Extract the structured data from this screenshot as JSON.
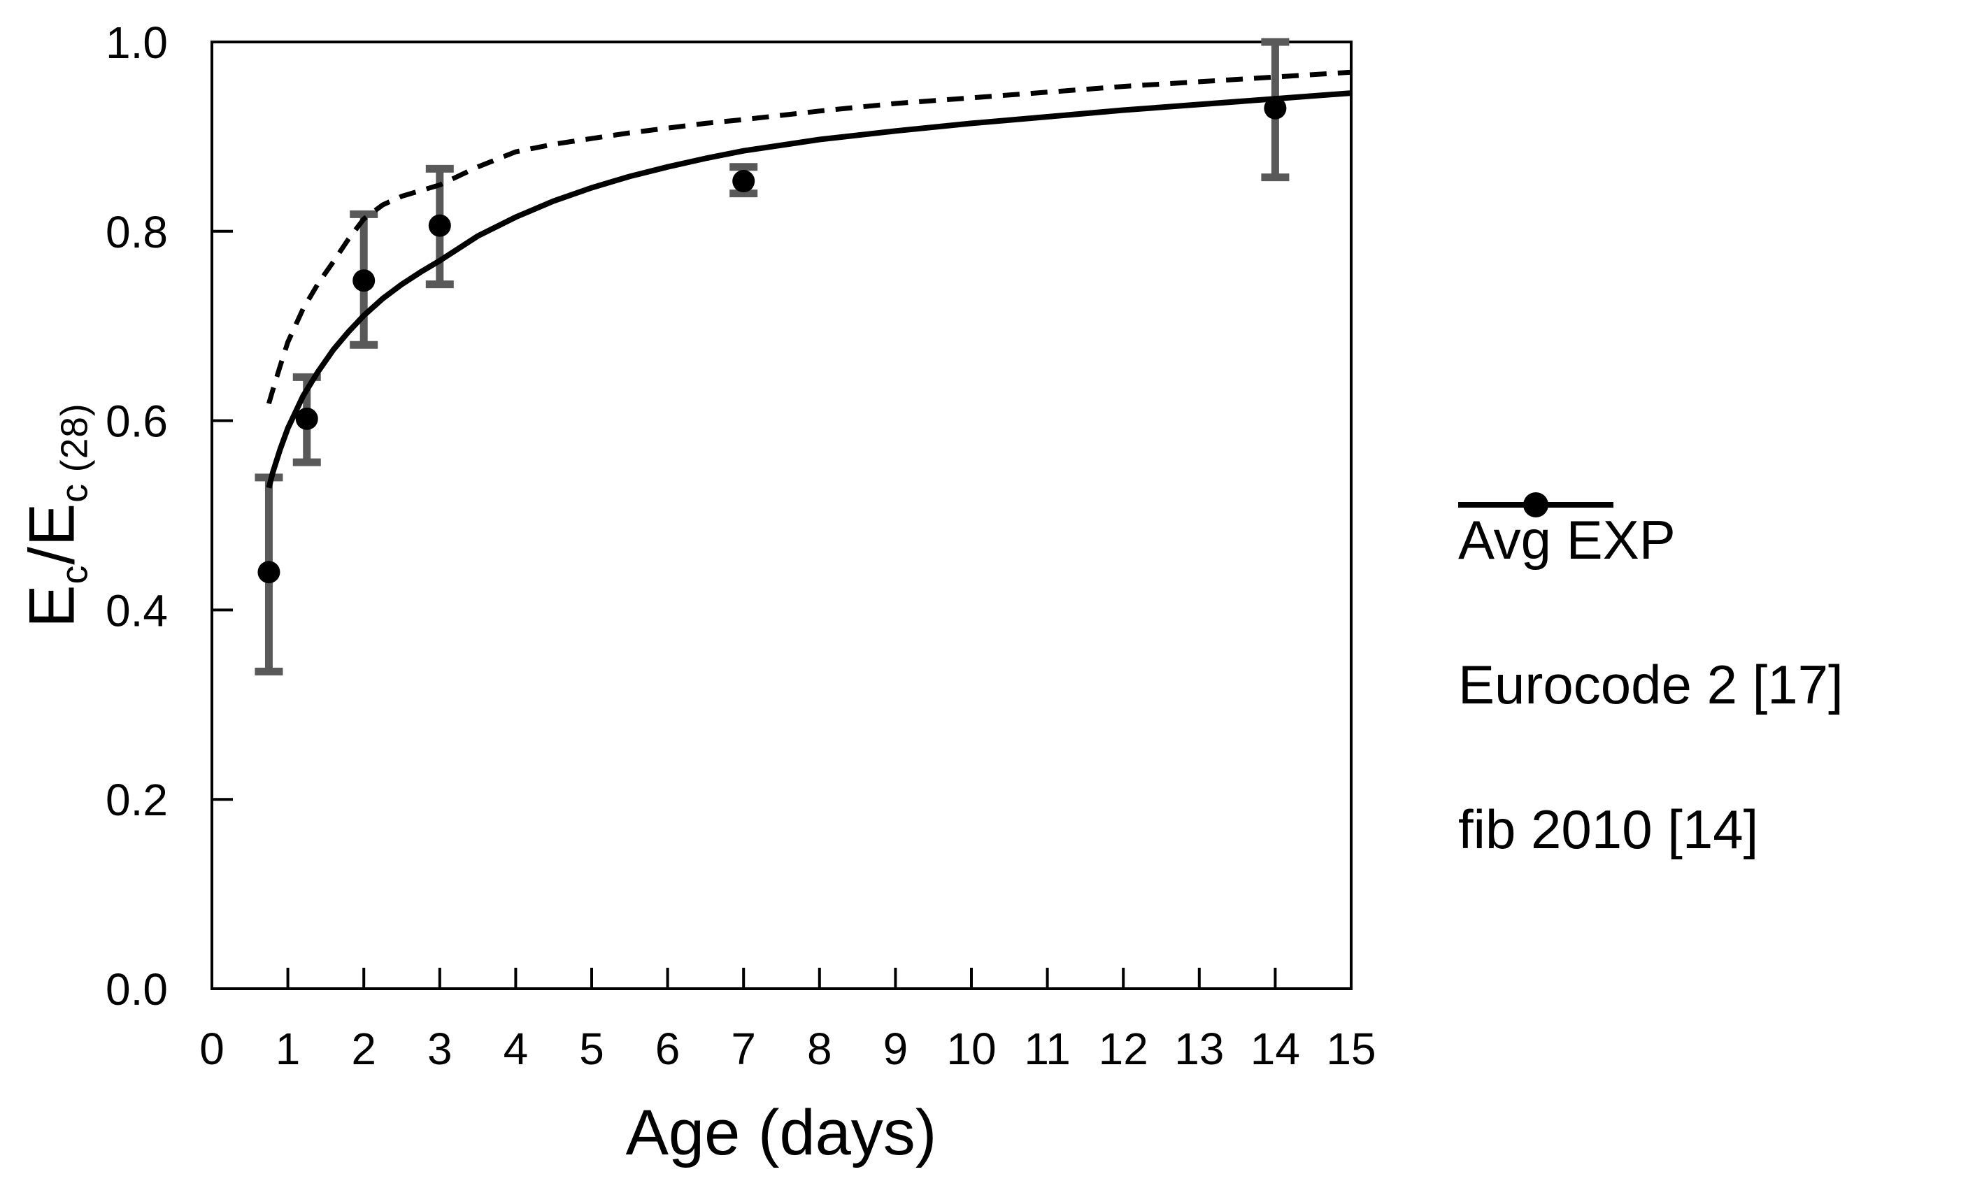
{
  "figure": {
    "background": "#ffffff",
    "frame_color": "#000000",
    "error_bar_color": "#595959"
  },
  "axes": {
    "x": {
      "label": "Age (days)",
      "min": 0,
      "max": 15
    },
    "y": {
      "label_parts": {
        "base1": "E",
        "sub1": "c",
        "slash": "/",
        "base2": "E",
        "sub2": "c (28)"
      },
      "min": 0.0,
      "max": 1.0
    }
  },
  "chart_data": {
    "type": "scatter",
    "title": "",
    "xlabel": "Age (days)",
    "ylabel": "Ec/Ec(28)",
    "xlim": [
      0,
      15
    ],
    "ylim": [
      0.0,
      1.0
    ],
    "x_ticks": [
      0,
      1,
      2,
      3,
      4,
      5,
      6,
      7,
      8,
      9,
      10,
      11,
      12,
      13,
      14,
      15
    ],
    "y_ticks": [
      0.0,
      0.2,
      0.4,
      0.6,
      0.8,
      1.0
    ],
    "grid": "off",
    "legend_position": "right-outside",
    "series": [
      {
        "name": "Avg EXP",
        "type": "scatter",
        "marker": "filled-circle",
        "color": "#000000",
        "error_bar_color": "#595959",
        "points": [
          {
            "x": 0.75,
            "y": 0.44,
            "y_lo": 0.335,
            "y_hi": 0.54
          },
          {
            "x": 1.25,
            "y": 0.602,
            "y_lo": 0.556,
            "y_hi": 0.646
          },
          {
            "x": 2,
            "y": 0.748,
            "y_lo": 0.68,
            "y_hi": 0.818
          },
          {
            "x": 3,
            "y": 0.806,
            "y_lo": 0.744,
            "y_hi": 0.866
          },
          {
            "x": 7,
            "y": 0.853,
            "y_lo": 0.84,
            "y_hi": 0.868
          },
          {
            "x": 14,
            "y": 0.93,
            "y_lo": 0.857,
            "y_hi": 1.0
          }
        ]
      },
      {
        "name": "Eurocode 2 [17]",
        "type": "line",
        "style": "dashed",
        "color": "#000000",
        "x": [
          0.75,
          0.8,
          0.9,
          1,
          1.2,
          1.4,
          1.6,
          1.8,
          2,
          2.25,
          2.5,
          2.75,
          3,
          3.5,
          4,
          4.5,
          5,
          5.5,
          6,
          6.5,
          7,
          8,
          9,
          10,
          11,
          12,
          13,
          14,
          15
        ],
        "y": [
          0.618,
          0.632,
          0.658,
          0.683,
          0.718,
          0.745,
          0.768,
          0.792,
          0.813,
          0.828,
          0.837,
          0.843,
          0.849,
          0.868,
          0.884,
          0.892,
          0.898,
          0.904,
          0.909,
          0.914,
          0.918,
          0.927,
          0.935,
          0.941,
          0.947,
          0.953,
          0.958,
          0.963,
          0.968
        ]
      },
      {
        "name": "fib 2010 [14]",
        "type": "line",
        "style": "solid",
        "color": "#000000",
        "x": [
          0.75,
          0.8,
          0.9,
          1,
          1.2,
          1.4,
          1.6,
          1.8,
          2,
          2.25,
          2.5,
          2.75,
          3,
          3.5,
          4,
          4.5,
          5,
          5.5,
          6,
          6.5,
          7,
          8,
          9,
          10,
          11,
          12,
          13,
          14,
          15
        ],
        "y": [
          0.529,
          0.545,
          0.57,
          0.592,
          0.626,
          0.652,
          0.675,
          0.694,
          0.711,
          0.729,
          0.744,
          0.757,
          0.769,
          0.795,
          0.815,
          0.832,
          0.846,
          0.858,
          0.868,
          0.877,
          0.885,
          0.897,
          0.906,
          0.914,
          0.921,
          0.928,
          0.934,
          0.94,
          0.946
        ]
      }
    ]
  },
  "legend": {
    "entries": [
      {
        "label": "Avg EXP",
        "swatch": "filled-circle-marker"
      },
      {
        "label": "Eurocode 2 [17]",
        "swatch": "dashed-line"
      },
      {
        "label": "fib 2010 [14]",
        "swatch": "solid-line"
      }
    ]
  }
}
